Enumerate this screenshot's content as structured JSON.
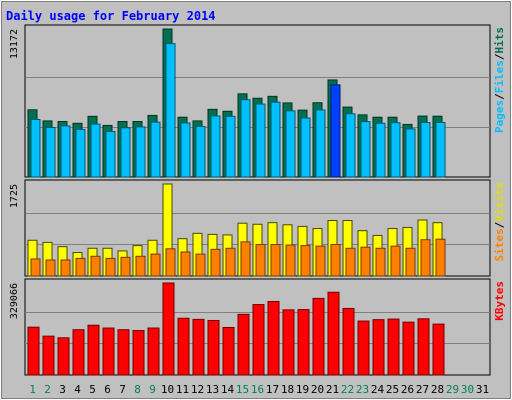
{
  "chart_data": {
    "type": "bar",
    "title": "Daily usage for February 2014",
    "days": [
      "1",
      "2",
      "3",
      "4",
      "5",
      "6",
      "7",
      "8",
      "9",
      "10",
      "11",
      "12",
      "13",
      "14",
      "15",
      "16",
      "17",
      "18",
      "19",
      "20",
      "21",
      "22",
      "23",
      "24",
      "25",
      "26",
      "27",
      "28",
      "29",
      "30",
      "31"
    ],
    "weekend_days": [
      1,
      2,
      8,
      9,
      15,
      16,
      22,
      23,
      29,
      30
    ],
    "panels": [
      {
        "id": "hits",
        "max_label": "13172",
        "max": 13172,
        "right_labels": [
          "Pages",
          "Files",
          "Hits"
        ],
        "highlight_day": 21,
        "series": [
          {
            "name": "Hits",
            "color": "#007050",
            "values": [
              5980,
              4990,
              4940,
              4780,
              5400,
              4590,
              4940,
              4940,
              5480,
              13172,
              5320,
              4990,
              6020,
              5850,
              7400,
              7010,
              7180,
              6590,
              5950,
              6610,
              8640,
              6220,
              5530,
              5320,
              5320,
              4680,
              5420,
              5410,
              0,
              0,
              0
            ]
          },
          {
            "name": "Files",
            "color": "#00c0ff",
            "values": [
              5120,
              4410,
              4550,
              4230,
              4710,
              4050,
              4380,
              4460,
              4880,
              11870,
              4810,
              4500,
              5430,
              5400,
              6880,
              6490,
              6660,
              5890,
              5250,
              5970,
              7000,
              5630,
              4930,
              4780,
              4830,
              4280,
              4850,
              4850,
              0,
              0,
              0
            ]
          },
          {
            "name": "Pages",
            "color": "#00c0ff",
            "values": [
              0,
              0,
              0,
              0,
              0,
              0,
              0,
              0,
              0,
              0,
              0,
              0,
              0,
              0,
              0,
              0,
              0,
              0,
              0,
              0,
              8200,
              0,
              0,
              0,
              0,
              0,
              0,
              0,
              0,
              0,
              0
            ],
            "highlight_color": "#0040ff"
          }
        ]
      },
      {
        "id": "visits",
        "max_label": "1725",
        "max": 1725,
        "right_labels": [
          "Sites",
          "Visits"
        ],
        "series": [
          {
            "name": "Visits",
            "color": "#ffff00",
            "values": [
              670,
              630,
              550,
              440,
              520,
              520,
              470,
              570,
              670,
              1725,
              700,
              800,
              780,
              770,
              990,
              970,
              1000,
              960,
              930,
              890,
              1040,
              1040,
              850,
              760,
              890,
              910,
              1050,
              1000,
              0,
              0,
              0
            ]
          },
          {
            "name": "Sites",
            "color": "#ff8000",
            "values": [
              320,
              300,
              300,
              330,
              370,
              330,
              350,
              370,
              410,
              510,
              450,
              410,
              500,
              520,
              640,
              590,
              590,
              580,
              570,
              560,
              590,
              520,
              540,
              520,
              560,
              520,
              680,
              690,
              0,
              0,
              0
            ]
          }
        ]
      },
      {
        "id": "kbytes",
        "max_label": "329066",
        "max": 329066,
        "right_labels": [
          "KBytes"
        ],
        "series": [
          {
            "name": "KBytes",
            "color": "#ff0000",
            "values": [
              171000,
              139000,
              133000,
              162000,
              178000,
              168000,
              162000,
              159000,
              168000,
              329066,
              203000,
              199000,
              195000,
              170000,
              217000,
              252000,
              263000,
              233000,
              234000,
              274000,
              296000,
              238000,
              193000,
              198000,
              200000,
              189000,
              201000,
              182000,
              0,
              0,
              0
            ]
          }
        ]
      }
    ],
    "colors": {
      "background": "#c0c0c0",
      "title": "#0000ff",
      "weekday_label": "#000000",
      "weekend_label": "#00805c"
    }
  }
}
